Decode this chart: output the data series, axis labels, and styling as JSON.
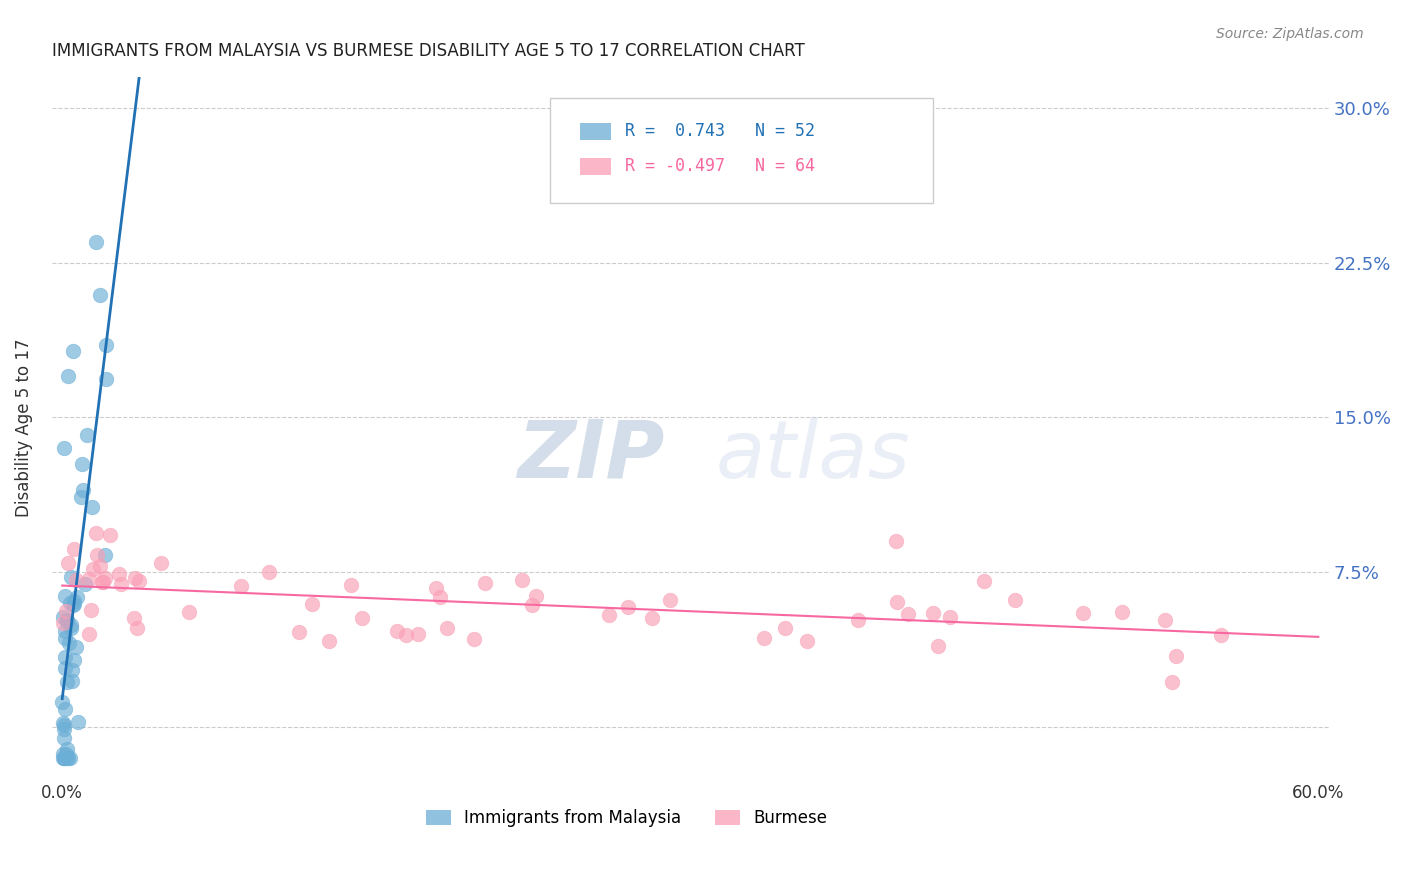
{
  "title": "IMMIGRANTS FROM MALAYSIA VS BURMESE DISABILITY AGE 5 TO 17 CORRELATION CHART",
  "source": "Source: ZipAtlas.com",
  "ylabel": "Disability Age 5 to 17",
  "legend_label_blue": "Immigrants from Malaysia",
  "legend_label_pink": "Burmese",
  "legend_r_blue": "R =  0.743",
  "legend_n_blue": "N = 52",
  "legend_r_pink": "R = -0.497",
  "legend_n_pink": "N = 64",
  "color_blue": "#6baed6",
  "color_pink": "#fa9fb5",
  "color_line_blue": "#2171b5",
  "color_line_pink": "#f768a1",
  "color_ytick": "#4472C4",
  "xmin": 0.0,
  "xmax": 0.6,
  "ymin": -0.025,
  "ymax": 0.315,
  "ytick_vals": [
    0.0,
    0.075,
    0.15,
    0.225,
    0.3
  ],
  "ytick_labels": [
    "",
    "7.5%",
    "15.0%",
    "22.5%",
    "30.0%"
  ],
  "xtick_vals": [
    0.0,
    0.1,
    0.2,
    0.3,
    0.4,
    0.5,
    0.6
  ],
  "xtick_labels": [
    "0.0%",
    "",
    "",
    "",
    "",
    "",
    "60.0%"
  ],
  "watermark_zip": "ZIP",
  "watermark_atlas": "atlas",
  "background_color": "#ffffff",
  "grid_color": "#cccccc"
}
